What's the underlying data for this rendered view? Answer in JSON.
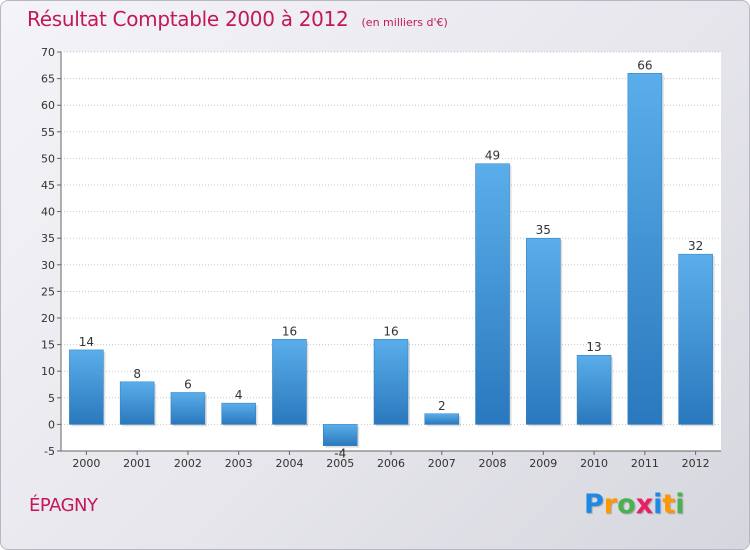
{
  "header": {
    "title": "Résultat Comptable 2000 à 2012",
    "subtitle": "(en milliers d'€)"
  },
  "footer": {
    "place": "ÉPAGNY",
    "logo": {
      "letters": [
        {
          "char": "P",
          "color": "#1e88e5"
        },
        {
          "char": "r",
          "color": "#ff9800"
        },
        {
          "char": "o",
          "color": "#4caf50"
        },
        {
          "char": "x",
          "color": "#e91e63"
        },
        {
          "char": "i",
          "color": "#1e88e5"
        },
        {
          "char": "t",
          "color": "#ff9800"
        },
        {
          "char": "i",
          "color": "#4caf50"
        }
      ]
    }
  },
  "chart_data": {
    "type": "bar",
    "categories": [
      "2000",
      "2001",
      "2002",
      "2003",
      "2004",
      "2005",
      "2006",
      "2007",
      "2008",
      "2009",
      "2010",
      "2011",
      "2012"
    ],
    "values": [
      14,
      8,
      6,
      4,
      16,
      -4,
      16,
      2,
      49,
      35,
      13,
      66,
      32
    ],
    "value_labels": [
      "14",
      "8",
      "6",
      "4",
      "16",
      "-4",
      "16",
      "2",
      "49",
      "35",
      "13",
      "66",
      "32"
    ],
    "ylim": [
      -5,
      70
    ],
    "yticks": [
      -5,
      0,
      5,
      10,
      15,
      20,
      25,
      30,
      35,
      40,
      45,
      50,
      55,
      60,
      65,
      70
    ],
    "grid": true,
    "bar_color": "#3d8fd6"
  }
}
